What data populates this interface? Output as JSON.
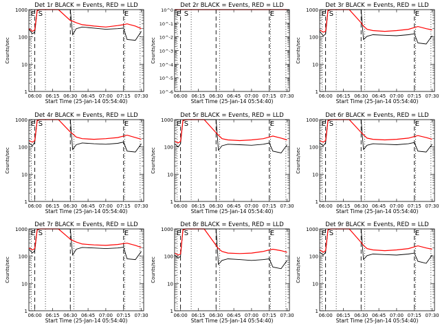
{
  "panel_xlabel": "Start Time (25-Jan-14 05:54:40)",
  "panel_ylabel": "Counts/sec",
  "x_ticks": [
    "06:00",
    "06:15",
    "06:30",
    "06:45",
    "07:00",
    "07:15",
    "07:30"
  ],
  "y_ticks_log": [
    "1",
    "10",
    "100",
    "1000"
  ],
  "y_ticks_tiny": [
    "10^0",
    "10^-1",
    "10^-2",
    "10^-3",
    "10^-4",
    "10^-5",
    "10^-6"
  ],
  "annotations": {
    "E": "E",
    "S": "S"
  },
  "colors": {
    "events": "#000000",
    "lld": "#ff0000",
    "axes": "#000000"
  },
  "chart_data": [
    {
      "type": "line",
      "title": "Det 1r BLACK = Events, RED = LLD",
      "x": [
        "05:55",
        "05:58",
        "06:00",
        "06:02",
        "06:05",
        "06:10",
        "06:20",
        "06:30",
        "06:32",
        "06:35",
        "06:40",
        "06:50",
        "07:00",
        "07:10",
        "07:15",
        "07:18",
        "07:25",
        "07:30"
      ],
      "series": [
        {
          "color": "#000000",
          "values": [
            190,
            130,
            150,
            900,
            1000,
            1000,
            1000,
            1000,
            120,
            200,
            230,
            210,
            190,
            200,
            210,
            80,
            75,
            160
          ]
        },
        {
          "color": "#ff0000",
          "values": [
            200,
            160,
            180,
            950,
            1000,
            1000,
            1000,
            400,
            380,
            330,
            280,
            250,
            230,
            260,
            280,
            300,
            250,
            200
          ]
        }
      ],
      "ylim": [
        1,
        1000
      ],
      "yscale": "log",
      "xlim": [
        "05:55",
        "07:32"
      ]
    },
    {
      "type": "line",
      "title": "Det 2r BLACK = Events, RED = LLD",
      "x": [
        "05:55",
        "06:00",
        "06:15",
        "06:30",
        "06:45",
        "07:00",
        "07:15",
        "07:30"
      ],
      "series": [
        {
          "color": "#000000",
          "values": [
            1,
            1,
            1,
            1,
            1,
            1,
            1,
            1
          ]
        },
        {
          "color": "#ff0000",
          "values": [
            1,
            1,
            1,
            1,
            1,
            1,
            1,
            1
          ]
        }
      ],
      "ylim": [
        1e-06,
        1
      ],
      "yscale": "log",
      "xlim": [
        "05:55",
        "07:32"
      ]
    },
    {
      "type": "line",
      "title": "Det 3r BLACK = Events, RED = LLD",
      "x": [
        "05:55",
        "05:58",
        "06:00",
        "06:02",
        "06:05",
        "06:10",
        "06:20",
        "06:30",
        "06:32",
        "06:35",
        "06:40",
        "06:50",
        "07:00",
        "07:10",
        "07:15",
        "07:18",
        "07:25",
        "07:30"
      ],
      "series": [
        {
          "color": "#000000",
          "values": [
            160,
            110,
            125,
            900,
            1000,
            1000,
            1000,
            1000,
            80,
            105,
            120,
            115,
            110,
            120,
            130,
            60,
            55,
            110
          ]
        },
        {
          "color": "#ff0000",
          "values": [
            180,
            150,
            160,
            950,
            1000,
            1000,
            1000,
            330,
            250,
            190,
            170,
            160,
            170,
            190,
            220,
            240,
            200,
            180
          ]
        }
      ],
      "ylim": [
        1,
        1000
      ],
      "yscale": "log",
      "xlim": [
        "05:55",
        "07:32"
      ]
    },
    {
      "type": "line",
      "title": "Det 4r BLACK = Events, RED = LLD",
      "x": [
        "05:55",
        "05:58",
        "06:00",
        "06:02",
        "06:05",
        "06:10",
        "06:20",
        "06:30",
        "06:32",
        "06:35",
        "06:40",
        "06:50",
        "07:00",
        "07:10",
        "07:15",
        "07:18",
        "07:25",
        "07:30"
      ],
      "series": [
        {
          "color": "#000000",
          "values": [
            140,
            110,
            150,
            900,
            1000,
            1000,
            1000,
            1000,
            80,
            120,
            140,
            130,
            125,
            135,
            150,
            70,
            65,
            130
          ]
        },
        {
          "color": "#ff0000",
          "values": [
            170,
            150,
            170,
            950,
            1000,
            1000,
            1000,
            350,
            300,
            230,
            200,
            190,
            200,
            220,
            250,
            270,
            220,
            190
          ]
        }
      ],
      "ylim": [
        1,
        1000
      ],
      "yscale": "log",
      "xlim": [
        "05:55",
        "07:32"
      ]
    },
    {
      "type": "line",
      "title": "Det 5r BLACK = Events, RED = LLD",
      "x": [
        "05:55",
        "05:58",
        "06:00",
        "06:02",
        "06:05",
        "06:10",
        "06:20",
        "06:30",
        "06:32",
        "06:35",
        "06:40",
        "06:50",
        "07:00",
        "07:10",
        "07:15",
        "07:18",
        "07:25",
        "07:30"
      ],
      "series": [
        {
          "color": "#000000",
          "values": [
            130,
            100,
            130,
            900,
            1000,
            1000,
            1000,
            1000,
            75,
            110,
            125,
            120,
            115,
            125,
            140,
            70,
            60,
            120
          ]
        },
        {
          "color": "#ff0000",
          "values": [
            160,
            140,
            160,
            950,
            1000,
            1000,
            1000,
            330,
            270,
            200,
            180,
            170,
            180,
            200,
            230,
            250,
            210,
            180
          ]
        }
      ],
      "ylim": [
        1,
        1000
      ],
      "yscale": "log",
      "xlim": [
        "05:55",
        "07:32"
      ]
    },
    {
      "type": "line",
      "title": "Det 6r BLACK = Events, RED = LLD",
      "x": [
        "05:55",
        "05:58",
        "06:00",
        "06:02",
        "06:05",
        "06:10",
        "06:20",
        "06:30",
        "06:32",
        "06:35",
        "06:40",
        "06:50",
        "07:00",
        "07:10",
        "07:15",
        "07:18",
        "07:25",
        "07:30"
      ],
      "series": [
        {
          "color": "#000000",
          "values": [
            140,
            110,
            140,
            900,
            1000,
            1000,
            1000,
            1000,
            80,
            115,
            130,
            125,
            120,
            130,
            145,
            70,
            65,
            125
          ]
        },
        {
          "color": "#ff0000",
          "values": [
            170,
            150,
            170,
            950,
            1000,
            1000,
            1000,
            340,
            280,
            210,
            190,
            180,
            190,
            210,
            240,
            260,
            220,
            190
          ]
        }
      ],
      "ylim": [
        1,
        1000
      ],
      "yscale": "log",
      "xlim": [
        "05:55",
        "07:32"
      ]
    },
    {
      "type": "line",
      "title": "Det 7r BLACK = Events, RED = LLD",
      "x": [
        "05:55",
        "05:58",
        "06:00",
        "06:02",
        "06:05",
        "06:10",
        "06:20",
        "06:30",
        "06:32",
        "06:35",
        "06:40",
        "06:50",
        "07:00",
        "07:10",
        "07:15",
        "07:18",
        "07:25",
        "07:30"
      ],
      "series": [
        {
          "color": "#000000",
          "values": [
            180,
            130,
            160,
            900,
            1000,
            1000,
            1000,
            1000,
            110,
            180,
            210,
            200,
            190,
            200,
            215,
            80,
            75,
            150
          ]
        },
        {
          "color": "#ff0000",
          "values": [
            200,
            170,
            190,
            950,
            1000,
            1000,
            1000,
            420,
            380,
            330,
            280,
            260,
            250,
            270,
            290,
            300,
            250,
            210
          ]
        }
      ],
      "ylim": [
        1,
        1000
      ],
      "yscale": "log",
      "xlim": [
        "05:55",
        "07:32"
      ]
    },
    {
      "type": "line",
      "title": "Det 8r BLACK = Events, RED = LLD",
      "x": [
        "05:55",
        "05:58",
        "06:00",
        "06:02",
        "06:05",
        "06:10",
        "06:20",
        "06:30",
        "06:32",
        "06:35",
        "06:40",
        "06:50",
        "07:00",
        "07:10",
        "07:15",
        "07:18",
        "07:25",
        "07:30"
      ],
      "series": [
        {
          "color": "#000000",
          "values": [
            110,
            85,
            100,
            900,
            1000,
            1000,
            1000,
            1000,
            50,
            70,
            80,
            75,
            70,
            75,
            80,
            40,
            35,
            70
          ]
        },
        {
          "color": "#ff0000",
          "values": [
            130,
            110,
            120,
            950,
            1000,
            1000,
            1000,
            250,
            190,
            150,
            130,
            125,
            130,
            150,
            170,
            180,
            160,
            140
          ]
        }
      ],
      "ylim": [
        1,
        1000
      ],
      "yscale": "log",
      "xlim": [
        "05:55",
        "07:32"
      ]
    },
    {
      "type": "line",
      "title": "Det 9r BLACK = Events, RED = LLD",
      "x": [
        "05:55",
        "05:58",
        "06:00",
        "06:02",
        "06:05",
        "06:10",
        "06:20",
        "06:30",
        "06:32",
        "06:35",
        "06:40",
        "06:50",
        "07:00",
        "07:10",
        "07:15",
        "07:18",
        "07:25",
        "07:30"
      ],
      "series": [
        {
          "color": "#000000",
          "values": [
            140,
            110,
            140,
            900,
            1000,
            1000,
            1000,
            1000,
            75,
            105,
            120,
            115,
            110,
            120,
            130,
            65,
            55,
            110
          ]
        },
        {
          "color": "#ff0000",
          "values": [
            170,
            140,
            160,
            950,
            1000,
            1000,
            1000,
            320,
            250,
            190,
            170,
            160,
            170,
            190,
            220,
            240,
            200,
            180
          ]
        }
      ],
      "ylim": [
        1,
        1000
      ],
      "yscale": "log",
      "xlim": [
        "05:55",
        "07:32"
      ]
    }
  ]
}
